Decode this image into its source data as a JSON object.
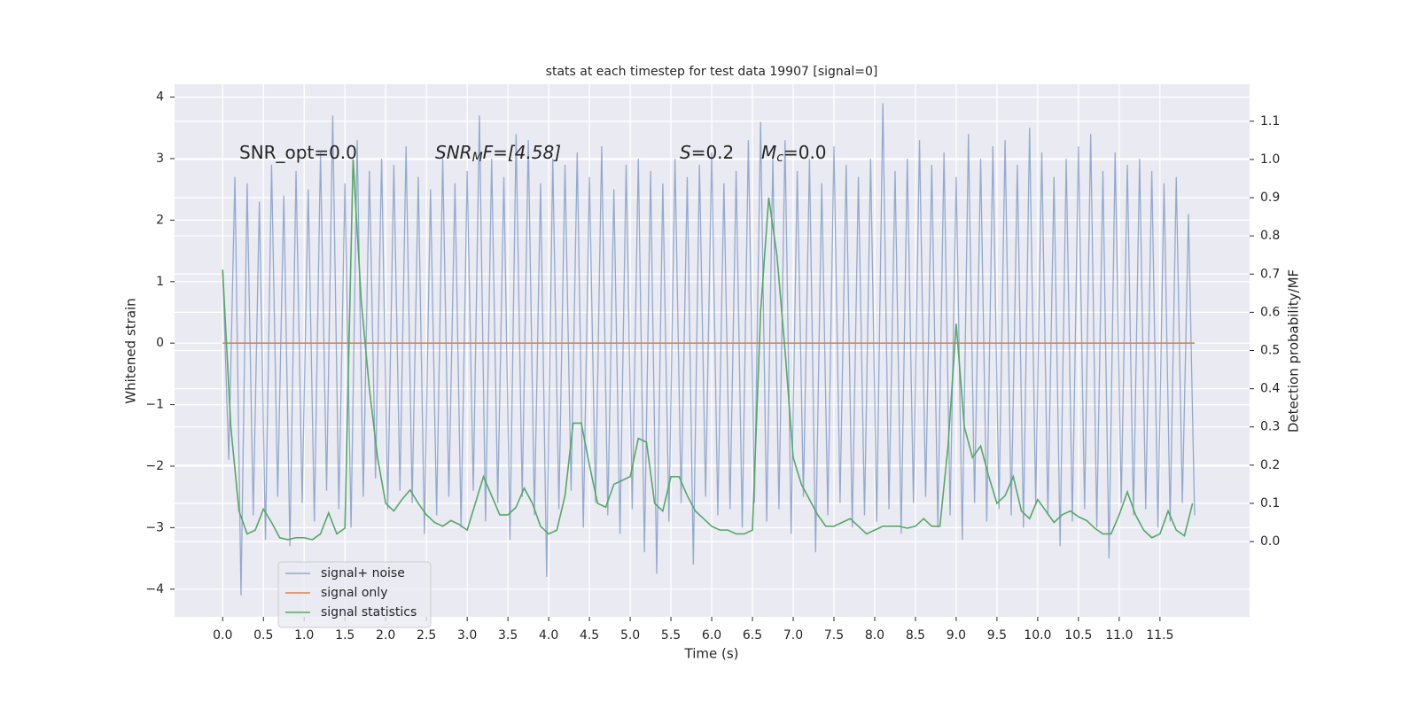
{
  "chart_data": {
    "type": "line",
    "title": "stats at each timestep for test data 19907 [signal=0]",
    "xlabel": "Time (s)",
    "ylabel": "Whitened strain",
    "y2label": "Detection probability/MF",
    "annotations": [
      [
        "SNR_opt=0.0"
      ],
      [
        "SNR",
        "M",
        "F=[4.58]"
      ],
      [
        "S",
        "=0.2"
      ],
      [
        "M",
        "c",
        "=0.0"
      ]
    ],
    "grid": true,
    "legend": "lower left",
    "xlim": [
      -0.59,
      12.6
    ],
    "ylim": [
      -4.45,
      4.21
    ],
    "y2lim": [
      -0.197,
      1.197
    ],
    "xticks": [
      {
        "value": 0,
        "label": "0.0"
      },
      0.5,
      {
        "value": 1,
        "label": "1.0"
      },
      1.5,
      {
        "value": 2,
        "label": "2.0"
      },
      2.5,
      {
        "value": 3,
        "label": "3.0"
      },
      3.5,
      {
        "value": 4,
        "label": "4.0"
      },
      4.5,
      {
        "value": 5,
        "label": "5.0"
      },
      5.5,
      {
        "value": 6,
        "label": "6.0"
      },
      6.5,
      {
        "value": 7,
        "label": "7.0"
      },
      7.5,
      {
        "value": 8,
        "label": "8.0"
      },
      8.5,
      {
        "value": 9,
        "label": "9.0"
      },
      9.5,
      {
        "value": 10,
        "label": "10.0"
      },
      10.5,
      {
        "value": 11,
        "label": "11.0"
      },
      11.5
    ],
    "yticks": [
      {
        "value": -4,
        "label": "−4"
      },
      {
        "value": -3,
        "label": "−3"
      },
      {
        "value": -2,
        "label": "−2"
      },
      {
        "value": -1,
        "label": "−1"
      },
      0,
      1,
      2,
      3,
      4
    ],
    "y2ticks": [
      {
        "value": 0,
        "label": "0.0"
      },
      0.1,
      0.2,
      0.3,
      0.4,
      0.5,
      0.6,
      0.7,
      0.8,
      0.9,
      {
        "value": 1,
        "label": "1.0"
      },
      1.1
    ],
    "series": [
      {
        "name": "signal+ noise",
        "color": "#4c72b0",
        "x": [
          0,
          0.075,
          0.15,
          0.225,
          0.3,
          0.375,
          0.45,
          0.525,
          0.6,
          0.675,
          0.75,
          0.825,
          0.9,
          0.975,
          1.05,
          1.125,
          1.2,
          1.275,
          1.35,
          1.425,
          1.5,
          1.575,
          1.65,
          1.725,
          1.8,
          1.875,
          1.95,
          2.025,
          2.1,
          2.175,
          2.25,
          2.325,
          2.4,
          2.475,
          2.55,
          2.625,
          2.7,
          2.775,
          2.85,
          2.925,
          3,
          3.075,
          3.15,
          3.225,
          3.3,
          3.375,
          3.45,
          3.525,
          3.6,
          3.675,
          3.75,
          3.825,
          3.9,
          3.975,
          4.05,
          4.125,
          4.2,
          4.275,
          4.35,
          4.425,
          4.5,
          4.575,
          4.65,
          4.725,
          4.8,
          4.875,
          4.95,
          5.025,
          5.1,
          5.175,
          5.25,
          5.325,
          5.4,
          5.475,
          5.55,
          5.625,
          5.7,
          5.775,
          5.85,
          5.925,
          6,
          6.075,
          6.15,
          6.225,
          6.3,
          6.375,
          6.45,
          6.525,
          6.6,
          6.675,
          6.75,
          6.825,
          6.9,
          6.975,
          7.05,
          7.125,
          7.2,
          7.275,
          7.35,
          7.425,
          7.5,
          7.575,
          7.65,
          7.725,
          7.8,
          7.875,
          7.95,
          8.025,
          8.1,
          8.175,
          8.25,
          8.325,
          8.4,
          8.475,
          8.55,
          8.625,
          8.7,
          8.775,
          8.85,
          8.925,
          9,
          9.075,
          9.15,
          9.225,
          9.3,
          9.375,
          9.45,
          9.525,
          9.6,
          9.675,
          9.75,
          9.825,
          9.9,
          9.975,
          10.05,
          10.125,
          10.2,
          10.275,
          10.35,
          10.425,
          10.5,
          10.575,
          10.65,
          10.725,
          10.8,
          10.875,
          10.95,
          11.025,
          11.1,
          11.175,
          11.25,
          11.325,
          11.4,
          11.475,
          11.55,
          11.625,
          11.7,
          11.775,
          11.85,
          11.925
        ],
        "values": [
          1.2,
          -1.9,
          2.7,
          -4.1,
          2.6,
          -2.8,
          2.3,
          -3.2,
          2.9,
          -2.5,
          2.4,
          -3.3,
          2.8,
          -2.6,
          2.5,
          -2.9,
          3.1,
          -2.4,
          3.7,
          -2.7,
          2.6,
          -3.0,
          3.3,
          -2.5,
          2.8,
          -2.2,
          3.0,
          -2.7,
          2.9,
          -2.4,
          3.2,
          -2.6,
          2.7,
          -3.1,
          2.5,
          -2.8,
          3.0,
          -2.5,
          2.6,
          -3.0,
          2.8,
          -2.4,
          3.7,
          -2.9,
          3.0,
          -2.6,
          2.7,
          -3.2,
          3.4,
          -2.5,
          3.3,
          -2.8,
          2.6,
          -3.8,
          3.0,
          -2.7,
          2.9,
          -2.4,
          3.1,
          -3.0,
          2.7,
          -2.6,
          3.2,
          -2.8,
          2.5,
          -3.1,
          2.9,
          -2.7,
          3.0,
          -3.4,
          2.8,
          -3.75,
          2.6,
          -2.9,
          3.0,
          -2.6,
          2.7,
          -3.6,
          2.9,
          -2.5,
          3.1,
          -2.8,
          2.6,
          -2.7,
          2.8,
          -3.0,
          3.3,
          -2.6,
          3.6,
          -2.9,
          3.0,
          -2.7,
          3.3,
          -3.1,
          2.8,
          -2.5,
          3.0,
          -3.4,
          2.6,
          -2.8,
          3.2,
          -2.6,
          2.9,
          -3.0,
          2.7,
          -2.8,
          3.0,
          -2.9,
          3.9,
          -2.7,
          2.8,
          -3.1,
          3.0,
          -2.6,
          3.3,
          -2.5,
          2.9,
          -3.0,
          3.1,
          -2.8,
          2.7,
          -3.2,
          3.4,
          -2.6,
          3.0,
          -2.9,
          3.2,
          -2.7,
          3.3,
          -2.8,
          2.9,
          -3.0,
          3.5,
          -2.6,
          3.1,
          -2.8,
          2.7,
          -3.3,
          3.0,
          -2.9,
          3.2,
          -2.7,
          3.4,
          -3.0,
          2.8,
          -3.5,
          3.1,
          -2.6,
          2.9,
          -2.8,
          3.0,
          -2.7,
          2.8,
          -3.0,
          2.6,
          -2.9,
          2.7,
          -2.6,
          2.1,
          -2.8
        ]
      },
      {
        "name": "signal only",
        "color": "#dd8452",
        "x": [
          0,
          11.925
        ],
        "values": [
          0,
          0
        ]
      },
      {
        "name": "signal statistics",
        "color": "#55a868",
        "axis": "y2",
        "x": [
          0,
          0.1,
          0.2,
          0.3,
          0.4,
          0.5,
          0.6,
          0.7,
          0.8,
          0.9,
          1,
          1.1,
          1.2,
          1.3,
          1.4,
          1.5,
          1.6,
          1.7,
          1.8,
          1.9,
          2,
          2.1,
          2.2,
          2.3,
          2.4,
          2.5,
          2.6,
          2.7,
          2.8,
          2.9,
          3,
          3.1,
          3.2,
          3.3,
          3.4,
          3.5,
          3.6,
          3.7,
          3.8,
          3.9,
          4,
          4.1,
          4.2,
          4.3,
          4.4,
          4.5,
          4.6,
          4.7,
          4.8,
          4.9,
          5,
          5.1,
          5.2,
          5.3,
          5.4,
          5.5,
          5.6,
          5.7,
          5.8,
          5.9,
          6,
          6.1,
          6.2,
          6.3,
          6.4,
          6.5,
          6.6,
          6.7,
          6.8,
          6.9,
          7,
          7.1,
          7.2,
          7.3,
          7.4,
          7.5,
          7.6,
          7.7,
          7.8,
          7.9,
          8,
          8.1,
          8.2,
          8.3,
          8.4,
          8.5,
          8.6,
          8.7,
          8.8,
          8.9,
          9,
          9.1,
          9.2,
          9.3,
          9.4,
          9.5,
          9.6,
          9.7,
          9.8,
          9.9,
          10,
          10.1,
          10.2,
          10.3,
          10.4,
          10.5,
          10.6,
          10.7,
          10.8,
          10.9,
          11,
          11.1,
          11.2,
          11.3,
          11.4,
          11.5,
          11.6,
          11.7,
          11.8,
          11.9
        ],
        "values": [
          0.71,
          0.3,
          0.08,
          0.02,
          0.03,
          0.085,
          0.05,
          0.01,
          0.005,
          0.01,
          0.01,
          0.005,
          0.02,
          0.075,
          0.02,
          0.035,
          1.0,
          0.63,
          0.4,
          0.22,
          0.1,
          0.08,
          0.11,
          0.135,
          0.1,
          0.07,
          0.05,
          0.04,
          0.055,
          0.045,
          0.03,
          0.1,
          0.17,
          0.12,
          0.07,
          0.07,
          0.09,
          0.14,
          0.1,
          0.04,
          0.02,
          0.03,
          0.12,
          0.31,
          0.31,
          0.2,
          0.1,
          0.09,
          0.15,
          0.16,
          0.17,
          0.27,
          0.26,
          0.1,
          0.08,
          0.17,
          0.17,
          0.12,
          0.08,
          0.06,
          0.04,
          0.03,
          0.03,
          0.02,
          0.02,
          0.03,
          0.6,
          0.9,
          0.75,
          0.5,
          0.22,
          0.15,
          0.11,
          0.07,
          0.04,
          0.04,
          0.05,
          0.06,
          0.04,
          0.02,
          0.03,
          0.04,
          0.04,
          0.04,
          0.035,
          0.04,
          0.06,
          0.04,
          0.04,
          0.25,
          0.57,
          0.3,
          0.22,
          0.25,
          0.17,
          0.1,
          0.12,
          0.17,
          0.08,
          0.06,
          0.11,
          0.08,
          0.05,
          0.07,
          0.08,
          0.065,
          0.055,
          0.035,
          0.02,
          0.02,
          0.07,
          0.13,
          0.07,
          0.03,
          0.01,
          0.02,
          0.08,
          0.03,
          0.015,
          0.1
        ]
      }
    ]
  }
}
